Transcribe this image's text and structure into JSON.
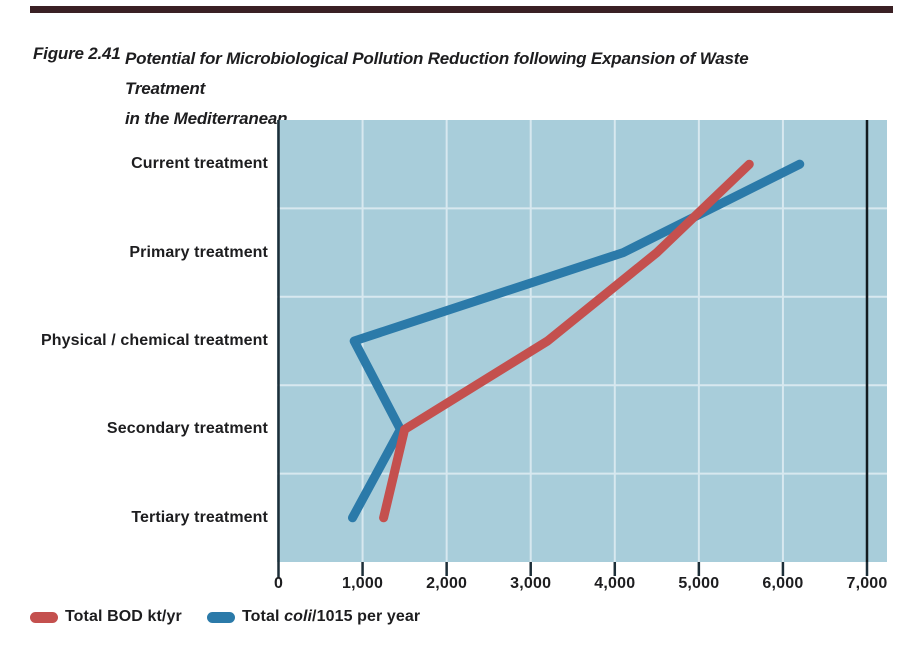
{
  "page": {
    "topbar_color": "#3a2024",
    "background": "#ffffff"
  },
  "figure": {
    "label": "Figure 2.41",
    "title_line1": "Potential for Microbiological Pollution Reduction following Expansion of Waste Treatment",
    "title_line2": "in the Mediterranean"
  },
  "chart_data": {
    "type": "line",
    "orientation": "horizontal-category-axis",
    "title": "Potential for Microbiological Pollution Reduction following Expansion of Waste Treatment in the Mediterranean",
    "categories": [
      "Current treatment",
      "Primary treatment",
      "Physical / chemical treatment",
      "Secondary treatment",
      "Tertiary treatment"
    ],
    "series": [
      {
        "name": "Total BOD kt/yr",
        "color": "#c4504e",
        "values": [
          5600,
          4500,
          3200,
          1500,
          1250
        ]
      },
      {
        "name": "Total coli/1015 per year",
        "color": "#2b7aa9",
        "values": [
          6200,
          4100,
          900,
          1450,
          880
        ]
      }
    ],
    "x_ticks": [
      0,
      1000,
      2000,
      3000,
      4000,
      5000,
      6000,
      7000
    ],
    "x_tick_labels": [
      "0",
      "1,000",
      "2,000",
      "3,000",
      "4,000",
      "5,000",
      "6,000",
      "7,000"
    ],
    "xlim": [
      0,
      7000
    ],
    "grid": true,
    "plot_bg": "#a8cdda",
    "gridline_color": "#d7e8ef",
    "axis_color": "#1d2e38",
    "end_gridline_color": "#131a1e",
    "legend_position": "bottom-left"
  },
  "legend": {
    "items": [
      {
        "label": "Total BOD kt/yr",
        "color": "#c4504e"
      },
      {
        "prefix": "Total ",
        "italic": "coli",
        "suffix": "/1015 per year",
        "color": "#2b7aa9"
      }
    ]
  }
}
